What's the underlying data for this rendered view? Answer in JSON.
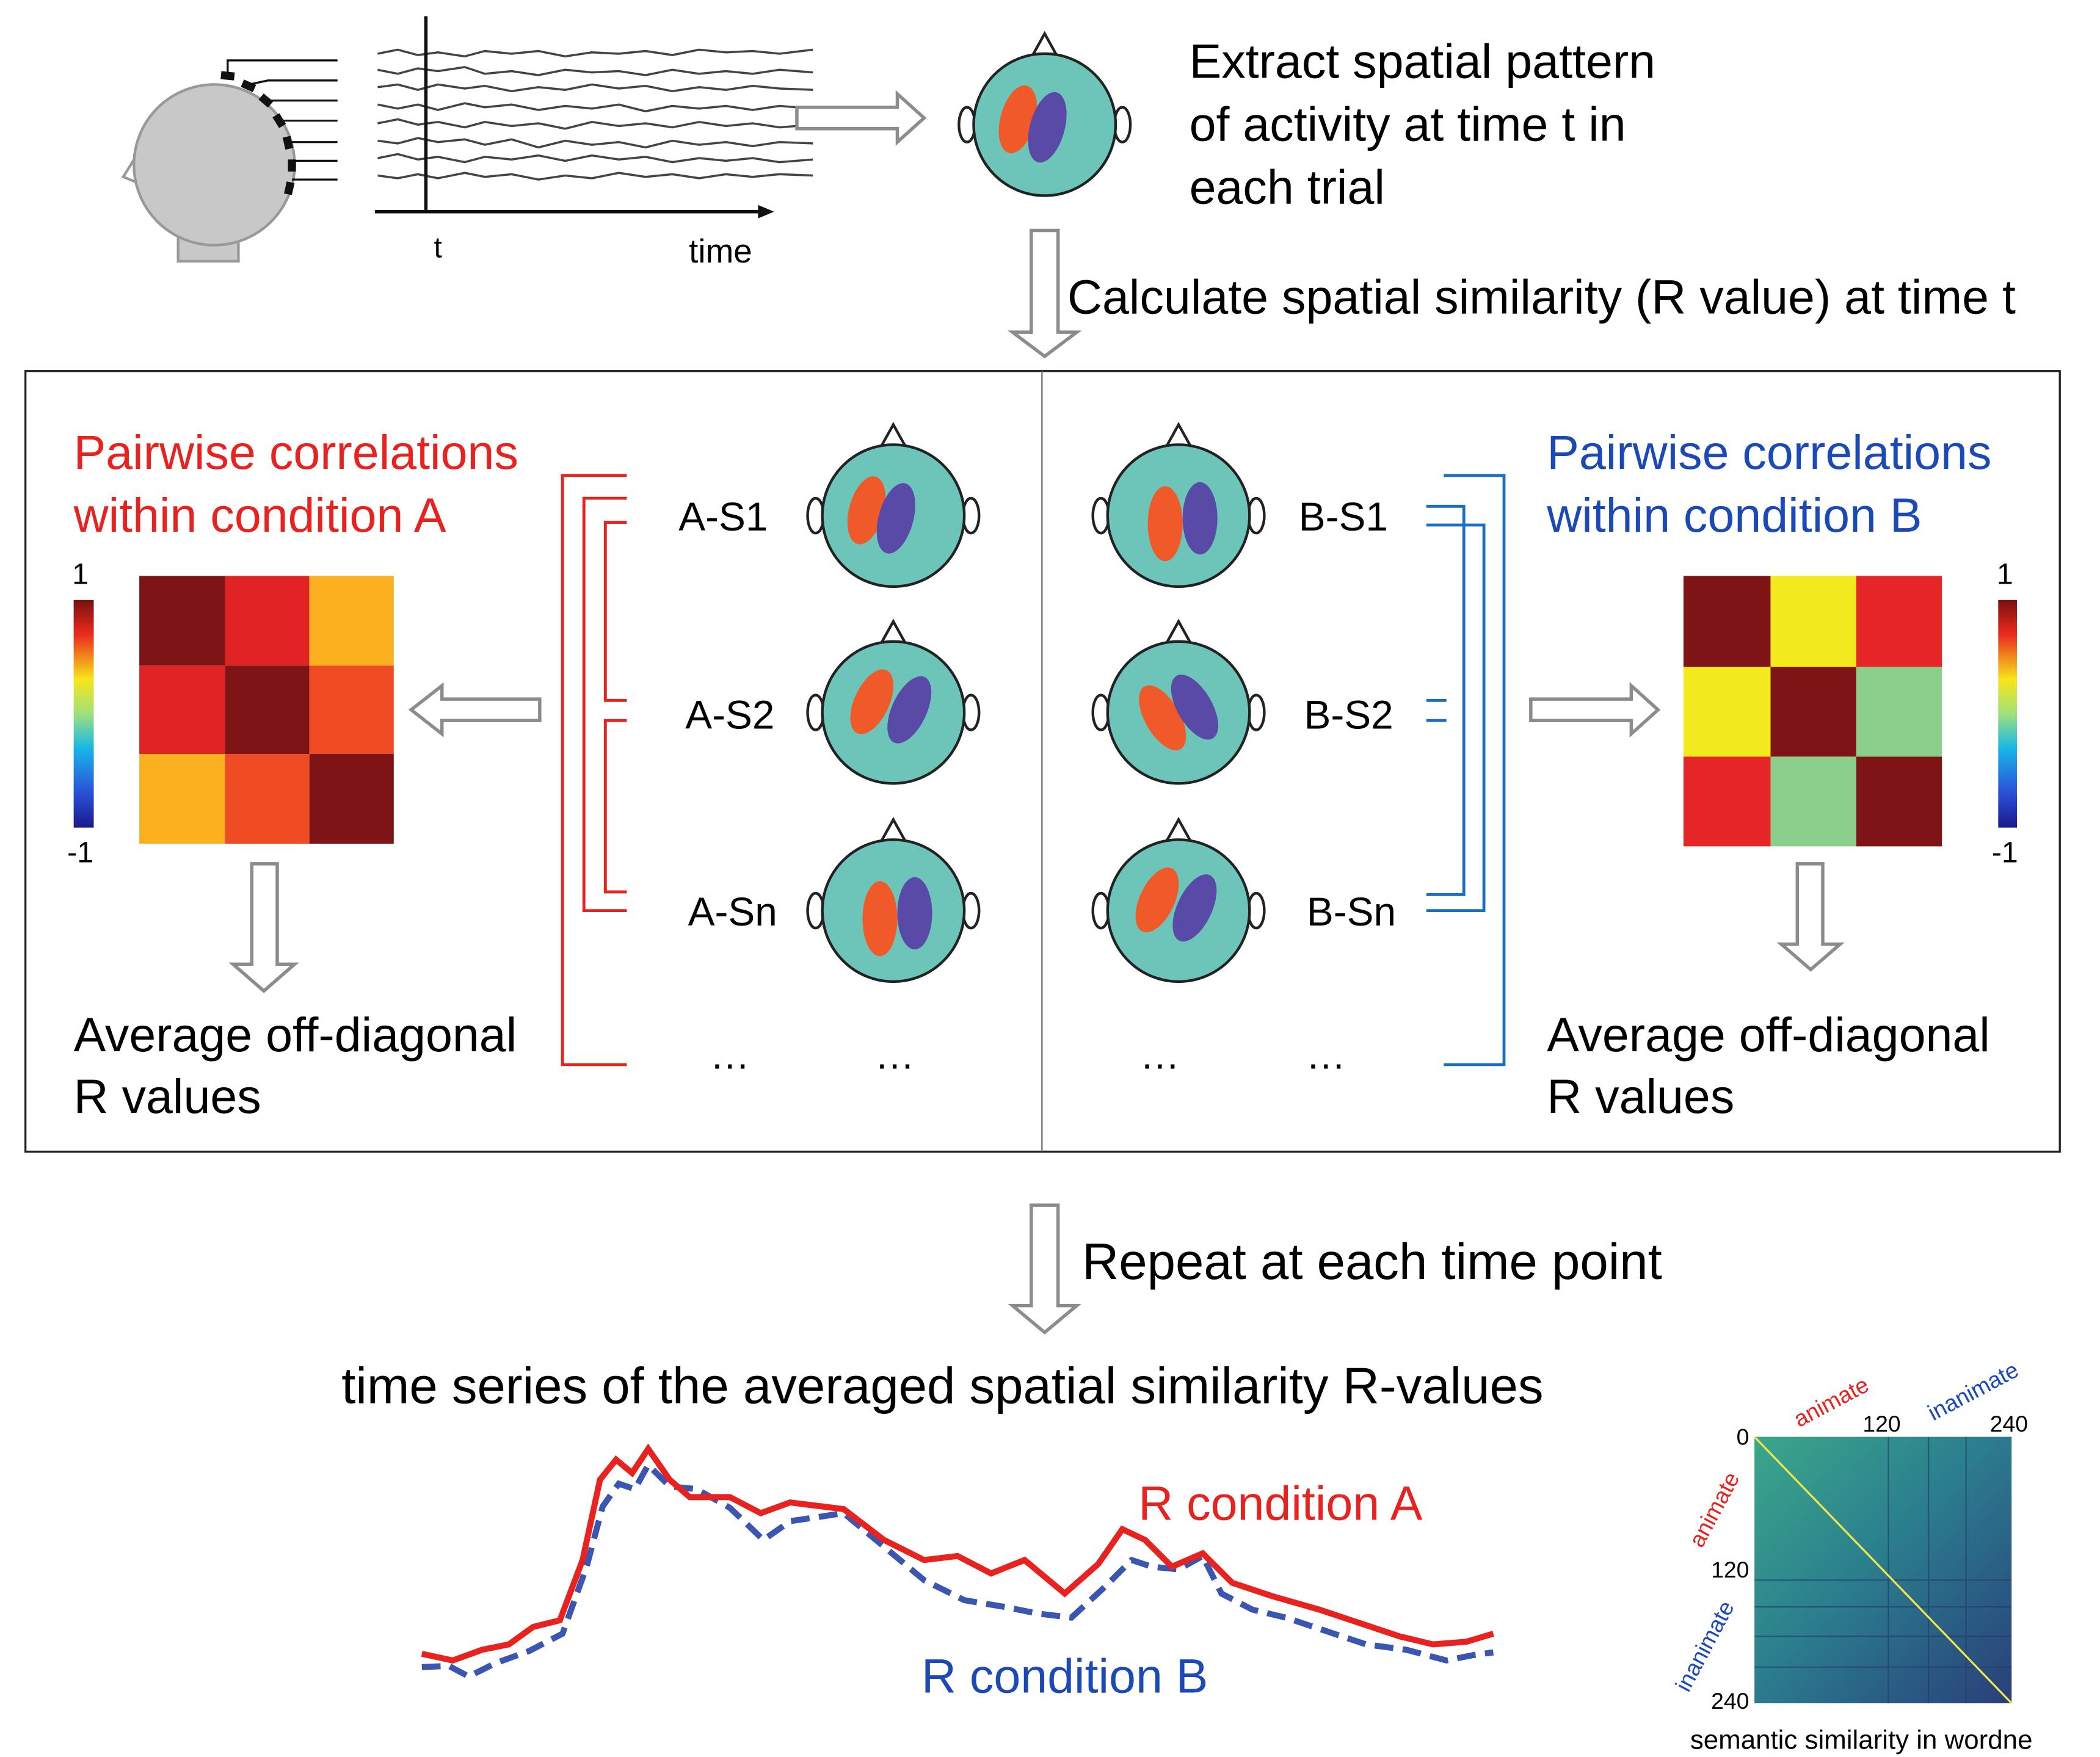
{
  "top": {
    "eeg_axis": {
      "t_label": "t",
      "time_label": "time"
    },
    "description": [
      "Extract spatial pattern",
      "of activity at time t in",
      "each trial"
    ]
  },
  "step1": "Calculate spatial similarity (R value) at time t",
  "panel_a": {
    "title": [
      "Pairwise correlations",
      "within condition A"
    ],
    "colorbar": {
      "max": "1",
      "min": "-1"
    },
    "subjects": [
      "A-S1",
      "A-S2",
      "A-Sn"
    ],
    "ellipsis": [
      "…",
      "…"
    ],
    "average": [
      "Average off-diagonal",
      "R values"
    ]
  },
  "panel_b": {
    "title": [
      "Pairwise correlations",
      "within condition B"
    ],
    "colorbar": {
      "max": "1",
      "min": "-1"
    },
    "subjects": [
      "B-S1",
      "B-S2",
      "B-Sn"
    ],
    "ellipsis": [
      "…",
      "…"
    ],
    "average": [
      "Average off-diagonal",
      "R values"
    ]
  },
  "step2": "Repeat at each time point",
  "series": {
    "title": "time series of the averaged spatial similarity R-values",
    "label_a": "R condition A",
    "label_b": "R condition B"
  },
  "inset": {
    "top_labels": [
      "animate",
      "inanimate"
    ],
    "left_labels": [
      "animate",
      "inanimate"
    ],
    "x_ticks": [
      "120",
      "240"
    ],
    "y_ticks": [
      "0",
      "120",
      "240"
    ],
    "caption": "semantic similarity in wordne"
  }
}
